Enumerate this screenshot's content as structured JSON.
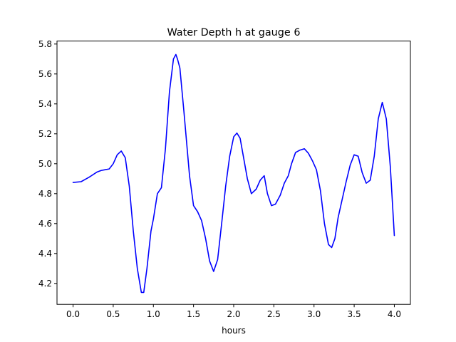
{
  "chart_data": {
    "type": "line",
    "title": "Water Depth h at gauge 6",
    "xlabel": "hours",
    "ylabel": "",
    "xlim": [
      -0.2,
      4.2
    ],
    "ylim": [
      4.06,
      5.82
    ],
    "x_ticks": [
      0.0,
      0.5,
      1.0,
      1.5,
      2.0,
      2.5,
      3.0,
      3.5,
      4.0
    ],
    "x_tick_labels": [
      "0.0",
      "0.5",
      "1.0",
      "1.5",
      "2.0",
      "2.5",
      "3.0",
      "3.5",
      "4.0"
    ],
    "y_ticks": [
      4.2,
      4.4,
      4.6,
      4.8,
      5.0,
      5.2,
      5.4,
      5.6,
      5.8
    ],
    "y_tick_labels": [
      "4.2",
      "4.4",
      "4.6",
      "4.8",
      "5.0",
      "5.2",
      "5.4",
      "5.6",
      "5.8"
    ],
    "grid": false,
    "legend": "none",
    "series": [
      {
        "color": "#0000ff",
        "x": [
          0.0,
          0.1,
          0.2,
          0.3,
          0.35,
          0.4,
          0.45,
          0.5,
          0.55,
          0.6,
          0.65,
          0.7,
          0.75,
          0.8,
          0.85,
          0.88,
          0.92,
          0.97,
          1.0,
          1.05,
          1.1,
          1.15,
          1.2,
          1.25,
          1.28,
          1.3,
          1.33,
          1.38,
          1.45,
          1.5,
          1.55,
          1.6,
          1.65,
          1.7,
          1.75,
          1.8,
          1.85,
          1.9,
          1.95,
          2.0,
          2.04,
          2.08,
          2.12,
          2.17,
          2.22,
          2.28,
          2.33,
          2.38,
          2.42,
          2.47,
          2.52,
          2.58,
          2.63,
          2.68,
          2.72,
          2.77,
          2.82,
          2.88,
          2.93,
          2.98,
          3.03,
          3.08,
          3.13,
          3.18,
          3.22,
          3.26,
          3.3,
          3.35,
          3.4,
          3.45,
          3.5,
          3.55,
          3.6,
          3.65,
          3.7,
          3.75,
          3.8,
          3.85,
          3.9,
          3.95,
          4.0
        ],
        "y": [
          4.875,
          4.88,
          4.91,
          4.945,
          4.955,
          4.96,
          4.965,
          5.0,
          5.06,
          5.085,
          5.04,
          4.85,
          4.55,
          4.3,
          4.14,
          4.14,
          4.3,
          4.55,
          4.63,
          4.8,
          4.84,
          5.1,
          5.48,
          5.7,
          5.73,
          5.7,
          5.64,
          5.35,
          4.92,
          4.72,
          4.68,
          4.62,
          4.5,
          4.35,
          4.28,
          4.36,
          4.6,
          4.85,
          5.05,
          5.18,
          5.205,
          5.17,
          5.05,
          4.9,
          4.8,
          4.83,
          4.89,
          4.92,
          4.8,
          4.72,
          4.73,
          4.79,
          4.87,
          4.92,
          5.0,
          5.075,
          5.09,
          5.1,
          5.07,
          5.02,
          4.96,
          4.82,
          4.6,
          4.46,
          4.44,
          4.5,
          4.64,
          4.76,
          4.88,
          4.99,
          5.06,
          5.05,
          4.94,
          4.87,
          4.89,
          5.05,
          5.3,
          5.41,
          5.3,
          4.98,
          4.52
        ]
      }
    ]
  }
}
